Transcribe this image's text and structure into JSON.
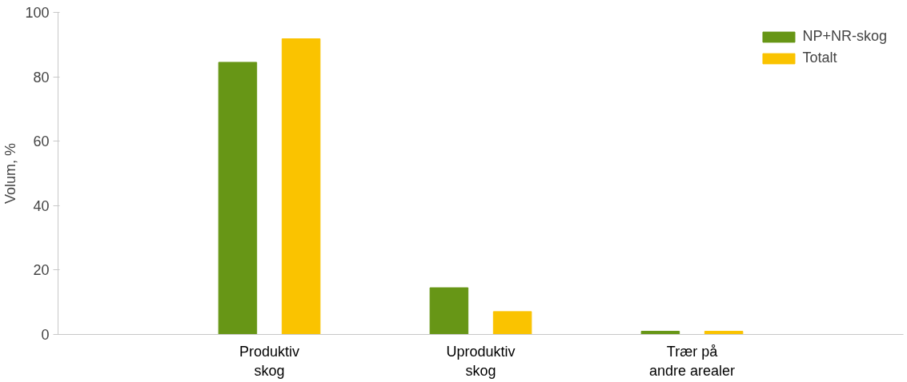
{
  "chart_data": {
    "type": "bar",
    "ylabel": "Volum, %",
    "categories": [
      "Produktiv\nskog",
      "Uproduktiv\nskog",
      "Trær på\nandre arealer"
    ],
    "series": [
      {
        "name": "NP+NR-skog",
        "color": "#679616",
        "values": [
          84.5,
          14.5,
          1.0
        ]
      },
      {
        "name": "Totalt",
        "color": "#fac300",
        "values": [
          91.8,
          7.1,
          1.0
        ]
      }
    ],
    "ylim": [
      0,
      100
    ],
    "yticks": [
      0,
      20,
      40,
      60,
      80,
      100
    ],
    "grid": false,
    "legend": "top right"
  }
}
